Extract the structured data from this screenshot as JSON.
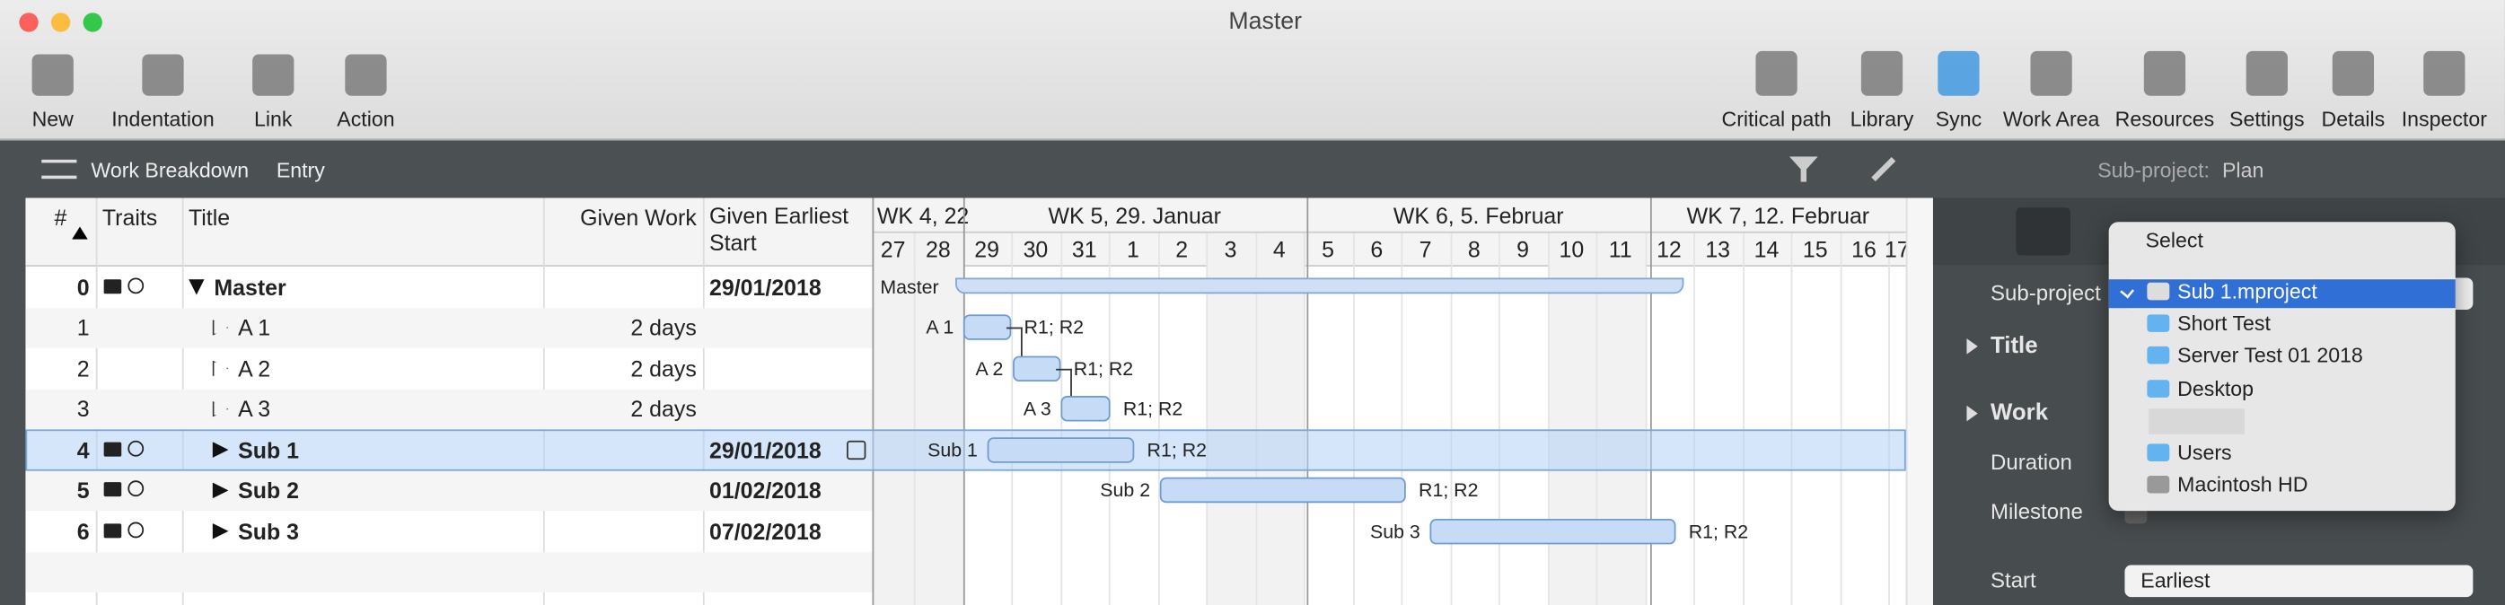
{
  "window": {
    "title": "Master"
  },
  "toolbar": {
    "left": [
      "New",
      "Indentation",
      "Link",
      "Action"
    ],
    "right": [
      "Critical path",
      "Library",
      "Sync",
      "Work Area",
      "Resources",
      "Settings",
      "Details",
      "Inspector"
    ]
  },
  "breadcrumb": [
    "Work Breakdown",
    "Entry"
  ],
  "inspector_header": {
    "label": "Sub-project:",
    "value": "Plan"
  },
  "table": {
    "columns": [
      "#",
      "Traits",
      "Title",
      "Given Work",
      "Given Earliest Start"
    ],
    "rows": [
      {
        "id": "0",
        "title": "Master",
        "start": "29/01/2018"
      },
      {
        "id": "1",
        "title": "A 1",
        "work": "2 days"
      },
      {
        "id": "2",
        "title": "A 2",
        "work": "2 days"
      },
      {
        "id": "3",
        "title": "A 3",
        "work": "2 days"
      },
      {
        "id": "4",
        "title": "Sub 1",
        "start": "29/01/2018"
      },
      {
        "id": "5",
        "title": "Sub 2",
        "start": "01/02/2018"
      },
      {
        "id": "6",
        "title": "Sub 3",
        "start": "07/02/2018"
      }
    ]
  },
  "gantt": {
    "weeks": [
      "WK 4, 22",
      "WK 5, 29. Januar",
      "WK 6, 5. Februar",
      "WK 7, 12. Februar"
    ],
    "days": [
      "27",
      "28",
      "29",
      "30",
      "31",
      "1",
      "2",
      "3",
      "4",
      "5",
      "6",
      "7",
      "8",
      "9",
      "10",
      "11",
      "12",
      "13",
      "14",
      "15",
      "16",
      "17"
    ],
    "bars": [
      {
        "label": "Master"
      },
      {
        "label": "A 1",
        "resources": "R1; R2"
      },
      {
        "label": "A 2",
        "resources": "R1; R2"
      },
      {
        "label": "A 3",
        "resources": "R1; R2"
      },
      {
        "label": "Sub 1",
        "resources": "R1; R2"
      },
      {
        "label": "Sub 2",
        "resources": "R1; R2"
      },
      {
        "label": "Sub 3",
        "resources": "R1; R2"
      }
    ]
  },
  "popup": {
    "header": "Select",
    "items": [
      "Sub 1.mproject",
      "Short Test",
      "Server Test 01 2018",
      "Desktop",
      "Users",
      "Macintosh HD"
    ]
  },
  "inspector": {
    "fields": [
      "Sub-project",
      "Title",
      "Work",
      "Duration",
      "Milestone",
      "Start"
    ],
    "start_value": "Earliest"
  }
}
